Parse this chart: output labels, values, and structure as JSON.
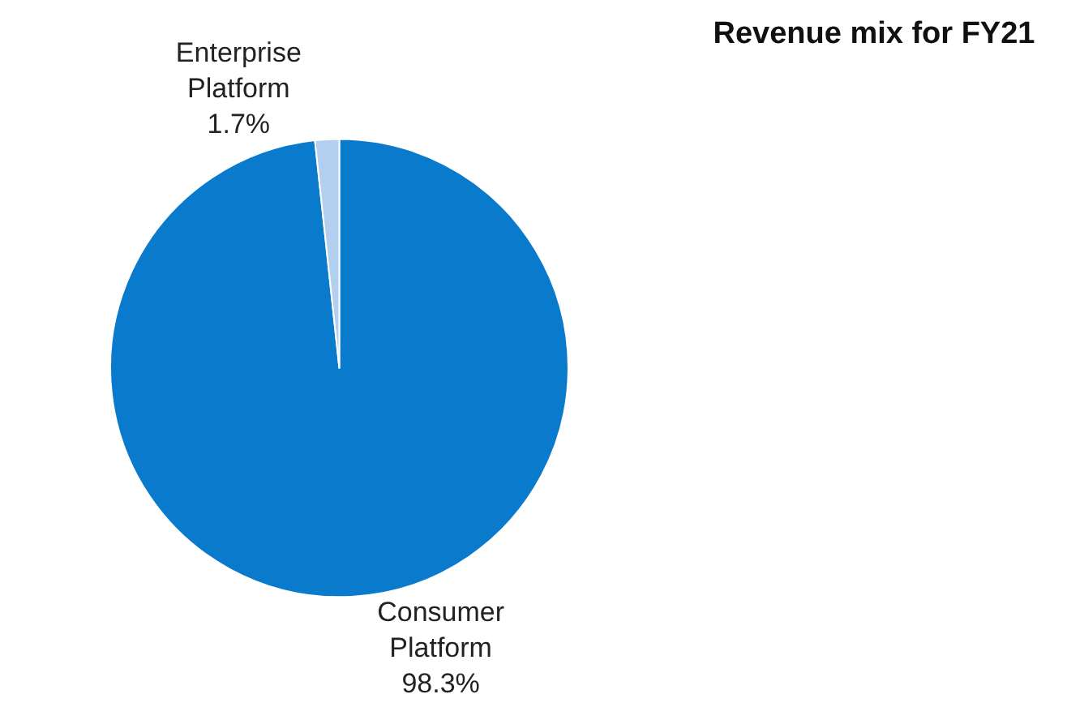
{
  "chart_data": {
    "type": "pie",
    "title": "Revenue mix for FY21",
    "categories": [
      "Consumer Platform",
      "Enterprise Platform"
    ],
    "values": [
      98.3,
      1.7
    ],
    "value_labels": [
      "98.3%",
      "1.7%"
    ],
    "colors": [
      "#0a7acd",
      "#b3cff0"
    ],
    "legend": false
  }
}
